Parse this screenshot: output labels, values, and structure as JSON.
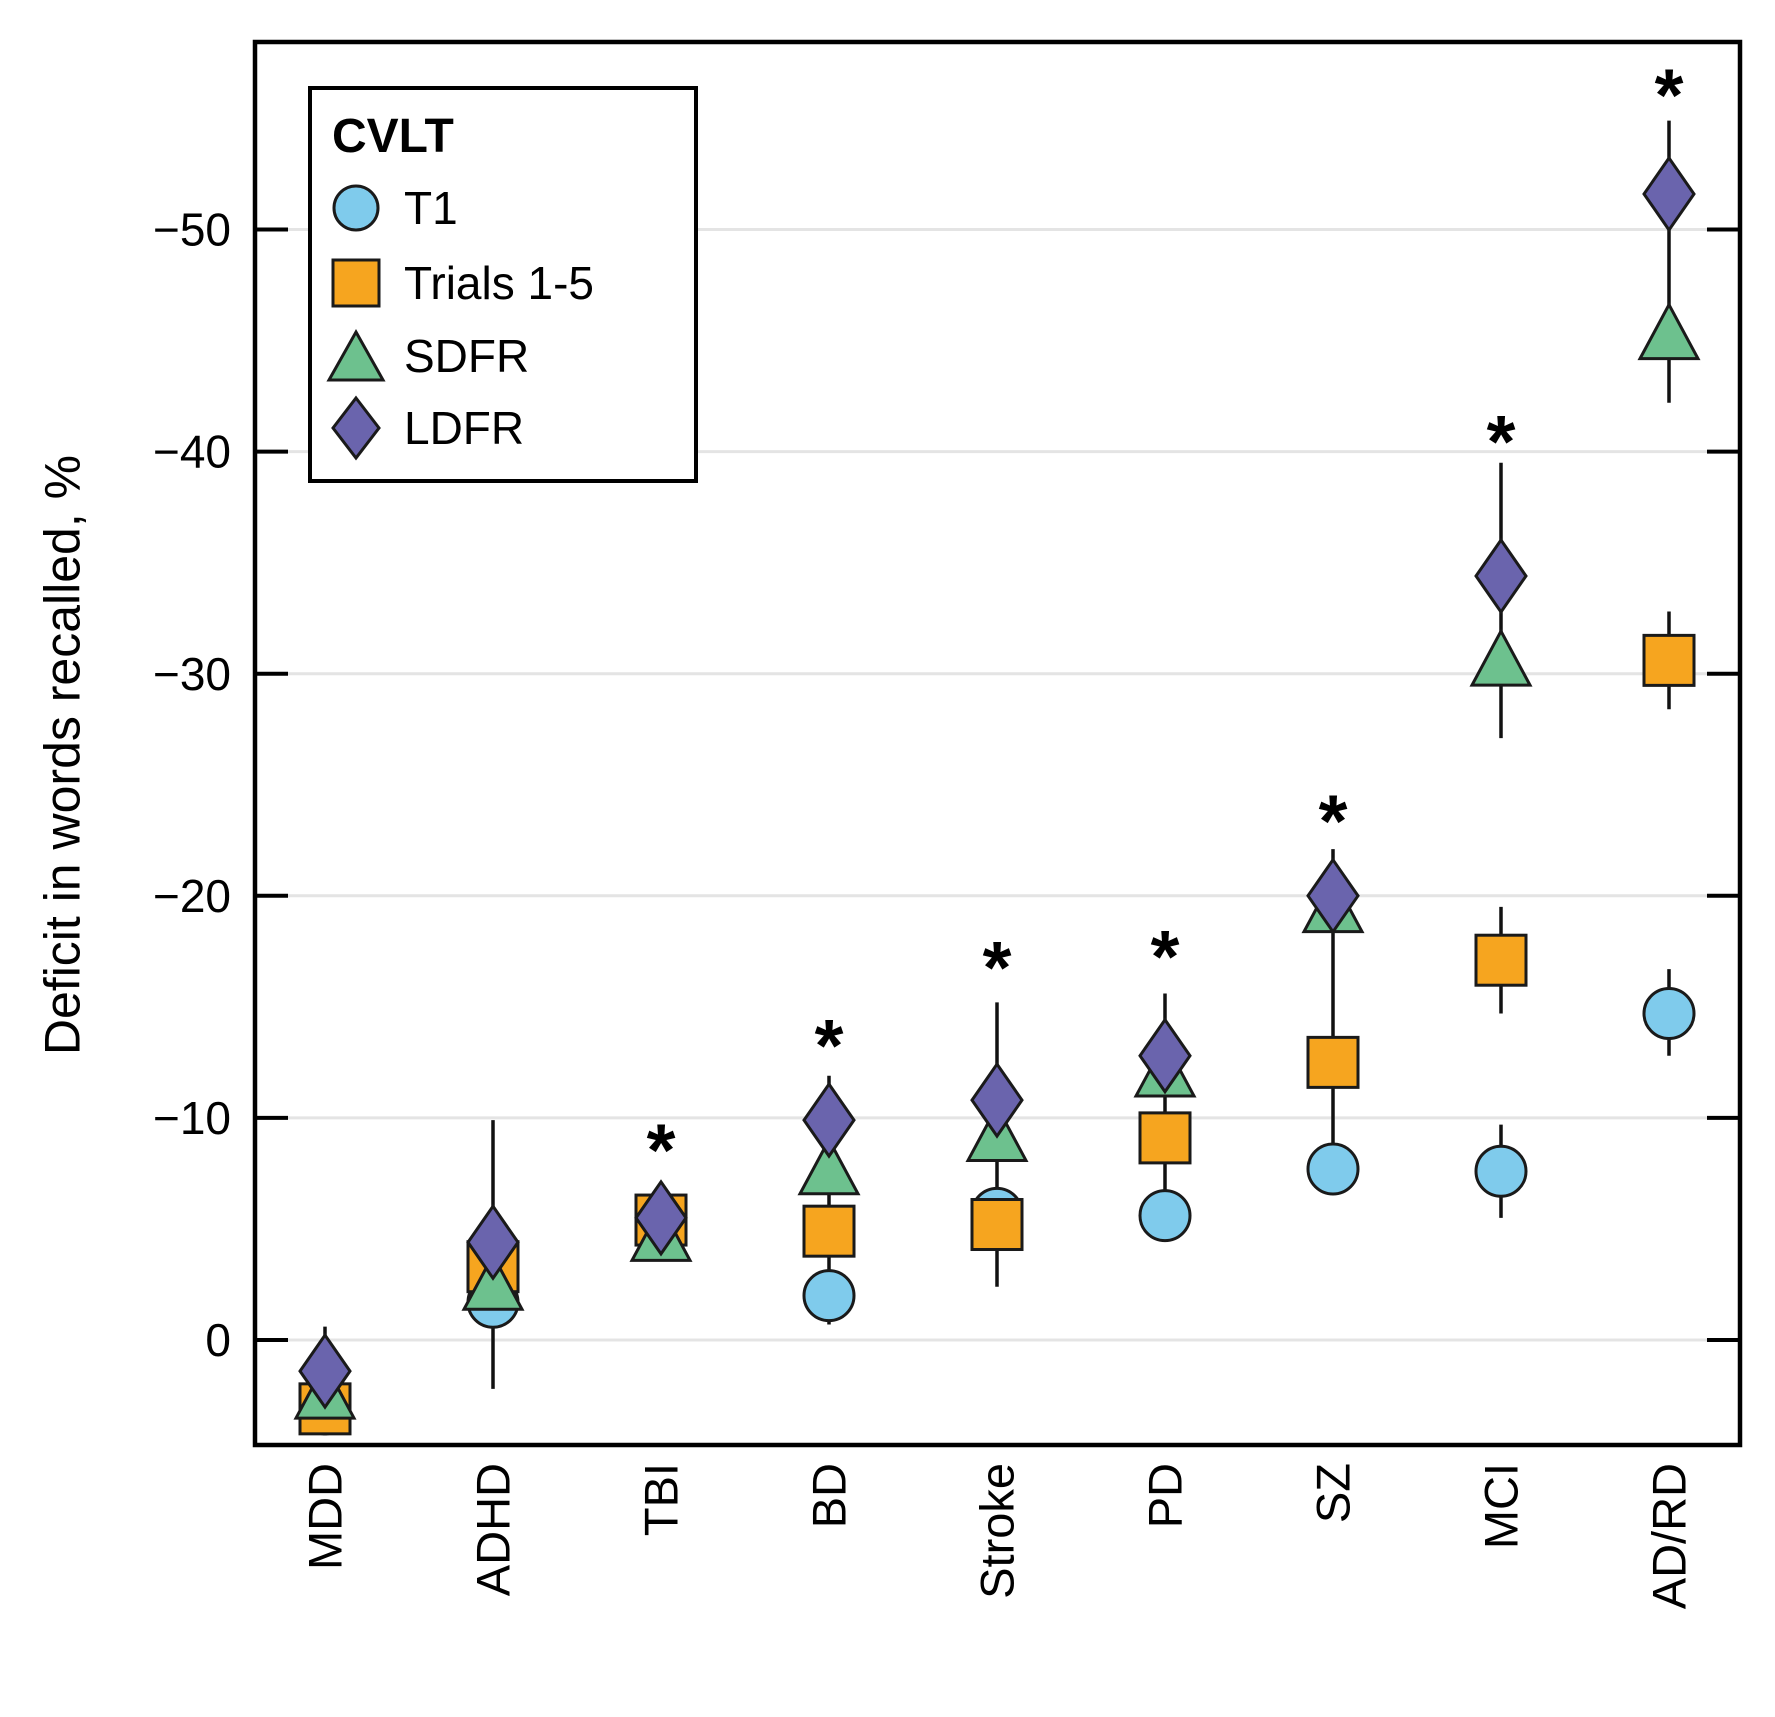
{
  "figure": {
    "background": "#ffffff",
    "frame_color": "#000000",
    "gridline_color": "#e4e4e4",
    "marker_outline_color": "#1a1a1a",
    "errorbar_color": "#111111"
  },
  "chart_data": {
    "type": "scatter",
    "title": "",
    "xlabel": "",
    "ylabel": "Deficit in words recalled, %",
    "grid": "horizontal",
    "legend_position": "upper left",
    "legend": {
      "title": "CVLT",
      "items": [
        "T1",
        "Trials 1-5",
        "SDFR",
        "LDFR"
      ]
    },
    "categories": [
      "MDD",
      "ADHD",
      "TBI",
      "BD",
      "Stroke",
      "PD",
      "SZ",
      "MCI",
      "AD/RD"
    ],
    "series": [
      {
        "name": "T1",
        "marker": "circle",
        "color": "#7fcbec",
        "values": [
          3.1,
          -1.7,
          -5.4,
          -2.0,
          -5.7,
          -5.6,
          -7.7,
          -7.6,
          -14.7
        ]
      },
      {
        "name": "Trials 1-5",
        "marker": "square",
        "color": "#f6a51f",
        "values": [
          3.1,
          -3.3,
          -5.4,
          -4.9,
          -5.2,
          -9.1,
          -12.5,
          -17.1,
          -30.6
        ]
      },
      {
        "name": "SDFR",
        "marker": "triangle",
        "color": "#6dc18e",
        "values": [
          2.3,
          -2.6,
          -4.8,
          -7.8,
          -9.3,
          -12.2,
          -19.6,
          -30.7,
          -45.4
        ]
      },
      {
        "name": "LDFR",
        "marker": "diamond",
        "color": "#6a64ad",
        "values": [
          1.4,
          -4.4,
          -5.5,
          -9.9,
          -10.8,
          -12.8,
          -20.0,
          -34.4,
          -51.6
        ]
      }
    ],
    "error_bars": [
      [
        [
          -0.6,
          4.3
        ]
      ],
      [
        [
          -9.9,
          2.2
        ]
      ],
      [
        [
          -6.4,
          -4.3
        ]
      ],
      [
        [
          -11.9,
          -0.7
        ]
      ],
      [
        [
          -15.2,
          -2.4
        ]
      ],
      [
        [
          -15.6,
          -4.5
        ]
      ],
      [
        [
          -22.1,
          -8.4
        ]
      ],
      [
        [
          -39.5,
          -27.1
        ],
        [
          -19.5,
          -14.7
        ],
        [
          -9.7,
          -5.5
        ]
      ],
      [
        [
          -54.9,
          -42.2
        ],
        [
          -32.8,
          -28.4
        ],
        [
          -16.7,
          -12.8
        ]
      ]
    ],
    "significance_marker": "*",
    "significance": [
      null,
      null,
      -8.9,
      -13.6,
      -17.1,
      -17.6,
      -23.7,
      -40.8,
      -56.4
    ],
    "yticks": [
      0,
      -10,
      -20,
      -30,
      -40,
      -50
    ],
    "ytick_labels": [
      "0",
      "−10",
      "−20",
      "−30",
      "−40",
      "−50"
    ],
    "ylim": [
      4.7,
      -58.4
    ]
  }
}
